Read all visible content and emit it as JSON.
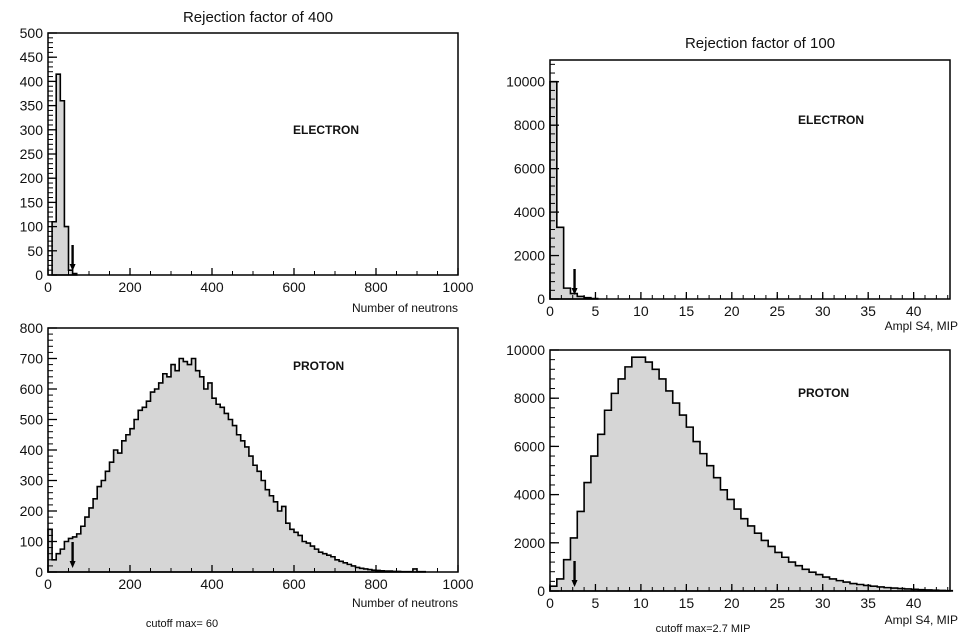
{
  "chart_data": [
    {
      "id": "electron-neutrons",
      "type": "histogram",
      "title": "Rejection factor of 400",
      "tag": "ELECTRON",
      "xlabel": "Number of neutrons",
      "ylabel": "",
      "xlim": [
        0,
        1000
      ],
      "ylim": [
        0,
        500
      ],
      "xticks": [
        0,
        200,
        400,
        600,
        800,
        1000
      ],
      "yticks": [
        0,
        50,
        100,
        150,
        200,
        250,
        300,
        350,
        400,
        450,
        500
      ],
      "bin_width": 10,
      "bins": [
        [
          10,
          110
        ],
        [
          20,
          415
        ],
        [
          30,
          360
        ],
        [
          40,
          100
        ],
        [
          50,
          10
        ],
        [
          60,
          3
        ]
      ],
      "cutoff": 60,
      "cutoff_label": "",
      "fill": "#d6d6d6"
    },
    {
      "id": "electron-amplitude",
      "type": "histogram",
      "title": "Rejection factor of 100",
      "tag": "ELECTRON",
      "xlabel": "Ampl S4, MIP",
      "ylabel": "",
      "xlim": [
        0,
        44
      ],
      "ylim": [
        0,
        11000
      ],
      "xticks": [
        0,
        5,
        10,
        15,
        20,
        25,
        30,
        35,
        40
      ],
      "yticks": [
        0,
        2000,
        4000,
        6000,
        8000,
        10000
      ],
      "bin_width": 0.75,
      "bins": [
        [
          0,
          10000
        ],
        [
          0.75,
          3300
        ],
        [
          1.5,
          500
        ],
        [
          2.25,
          250
        ],
        [
          3,
          120
        ],
        [
          3.75,
          60
        ],
        [
          4.5,
          20
        ]
      ],
      "cutoff": 2.7,
      "cutoff_label": "",
      "fill": "#d6d6d6"
    },
    {
      "id": "proton-neutrons",
      "type": "histogram",
      "title": "",
      "tag": "PROTON",
      "xlabel": "Number of neutrons",
      "ylabel": "",
      "xlim": [
        0,
        1000
      ],
      "ylim": [
        0,
        800
      ],
      "xticks": [
        0,
        200,
        400,
        600,
        800,
        1000
      ],
      "yticks": [
        0,
        100,
        200,
        300,
        400,
        500,
        600,
        700,
        800
      ],
      "bin_width": 10,
      "bins": [
        [
          0,
          140
        ],
        [
          10,
          40
        ],
        [
          20,
          60
        ],
        [
          30,
          75
        ],
        [
          40,
          100
        ],
        [
          50,
          110
        ],
        [
          60,
          115
        ],
        [
          70,
          125
        ],
        [
          80,
          150
        ],
        [
          90,
          180
        ],
        [
          100,
          210
        ],
        [
          110,
          240
        ],
        [
          120,
          280
        ],
        [
          130,
          300
        ],
        [
          140,
          330
        ],
        [
          150,
          360
        ],
        [
          160,
          400
        ],
        [
          170,
          390
        ],
        [
          180,
          430
        ],
        [
          190,
          450
        ],
        [
          200,
          470
        ],
        [
          210,
          500
        ],
        [
          220,
          530
        ],
        [
          230,
          540
        ],
        [
          240,
          560
        ],
        [
          250,
          590
        ],
        [
          260,
          600
        ],
        [
          270,
          620
        ],
        [
          280,
          650
        ],
        [
          290,
          640
        ],
        [
          300,
          680
        ],
        [
          310,
          660
        ],
        [
          320,
          700
        ],
        [
          330,
          690
        ],
        [
          340,
          680
        ],
        [
          350,
          700
        ],
        [
          360,
          660
        ],
        [
          370,
          640
        ],
        [
          380,
          600
        ],
        [
          390,
          620
        ],
        [
          400,
          570
        ],
        [
          410,
          550
        ],
        [
          420,
          540
        ],
        [
          430,
          520
        ],
        [
          440,
          500
        ],
        [
          450,
          480
        ],
        [
          460,
          450
        ],
        [
          470,
          430
        ],
        [
          480,
          410
        ],
        [
          490,
          380
        ],
        [
          500,
          350
        ],
        [
          510,
          330
        ],
        [
          520,
          300
        ],
        [
          530,
          270
        ],
        [
          540,
          250
        ],
        [
          550,
          230
        ],
        [
          560,
          200
        ],
        [
          570,
          215
        ],
        [
          580,
          160
        ],
        [
          590,
          140
        ],
        [
          600,
          130
        ],
        [
          610,
          120
        ],
        [
          620,
          100
        ],
        [
          630,
          95
        ],
        [
          640,
          85
        ],
        [
          650,
          75
        ],
        [
          660,
          65
        ],
        [
          670,
          60
        ],
        [
          680,
          55
        ],
        [
          690,
          50
        ],
        [
          700,
          40
        ],
        [
          710,
          35
        ],
        [
          720,
          30
        ],
        [
          730,
          25
        ],
        [
          740,
          20
        ],
        [
          750,
          15
        ],
        [
          760,
          12
        ],
        [
          770,
          10
        ],
        [
          780,
          8
        ],
        [
          790,
          6
        ],
        [
          800,
          5
        ],
        [
          810,
          4
        ],
        [
          820,
          3
        ],
        [
          830,
          3
        ],
        [
          840,
          2
        ],
        [
          850,
          2
        ],
        [
          860,
          1
        ],
        [
          870,
          1
        ],
        [
          880,
          1
        ],
        [
          890,
          10
        ],
        [
          900,
          1
        ],
        [
          910,
          1
        ]
      ],
      "cutoff": 60,
      "cutoff_label": "cutoff max= 60",
      "fill": "#d6d6d6"
    },
    {
      "id": "proton-amplitude",
      "type": "histogram",
      "title": "",
      "tag": "PROTON",
      "xlabel": "Ampl S4, MIP",
      "ylabel": "",
      "xlim": [
        0,
        44
      ],
      "ylim": [
        0,
        10000
      ],
      "xticks": [
        0,
        5,
        10,
        15,
        20,
        25,
        30,
        35,
        40
      ],
      "yticks": [
        0,
        2000,
        4000,
        6000,
        8000,
        10000
      ],
      "bin_width": 0.75,
      "bins": [
        [
          0,
          200
        ],
        [
          0.75,
          500
        ],
        [
          1.5,
          1300
        ],
        [
          2.25,
          2200
        ],
        [
          3,
          3300
        ],
        [
          3.75,
          4500
        ],
        [
          4.5,
          5600
        ],
        [
          5.25,
          6500
        ],
        [
          6,
          7500
        ],
        [
          6.75,
          8200
        ],
        [
          7.5,
          8800
        ],
        [
          8.25,
          9300
        ],
        [
          9,
          9700
        ],
        [
          9.75,
          9700
        ],
        [
          10.5,
          9500
        ],
        [
          11.25,
          9200
        ],
        [
          12,
          8800
        ],
        [
          12.75,
          8300
        ],
        [
          13.5,
          7800
        ],
        [
          14.25,
          7300
        ],
        [
          15,
          6800
        ],
        [
          15.75,
          6200
        ],
        [
          16.5,
          5700
        ],
        [
          17.25,
          5200
        ],
        [
          18,
          4700
        ],
        [
          18.75,
          4200
        ],
        [
          19.5,
          3800
        ],
        [
          20.25,
          3400
        ],
        [
          21,
          3000
        ],
        [
          21.75,
          2700
        ],
        [
          22.5,
          2400
        ],
        [
          23.25,
          2100
        ],
        [
          24,
          1850
        ],
        [
          24.75,
          1600
        ],
        [
          25.5,
          1400
        ],
        [
          26.25,
          1200
        ],
        [
          27,
          1050
        ],
        [
          27.75,
          900
        ],
        [
          28.5,
          780
        ],
        [
          29.25,
          680
        ],
        [
          30,
          580
        ],
        [
          30.75,
          500
        ],
        [
          31.5,
          430
        ],
        [
          32.25,
          370
        ],
        [
          33,
          310
        ],
        [
          33.75,
          270
        ],
        [
          34.5,
          230
        ],
        [
          35.25,
          200
        ],
        [
          36,
          170
        ],
        [
          36.75,
          140
        ],
        [
          37.5,
          120
        ],
        [
          38.25,
          100
        ],
        [
          39,
          85
        ],
        [
          39.75,
          70
        ],
        [
          40.5,
          55
        ],
        [
          41.25,
          45
        ],
        [
          42,
          35
        ],
        [
          42.75,
          25
        ],
        [
          43.5,
          15
        ]
      ],
      "cutoff": 2.7,
      "cutoff_label": "cutoff max=2.7 MIP",
      "fill": "#d6d6d6"
    }
  ]
}
